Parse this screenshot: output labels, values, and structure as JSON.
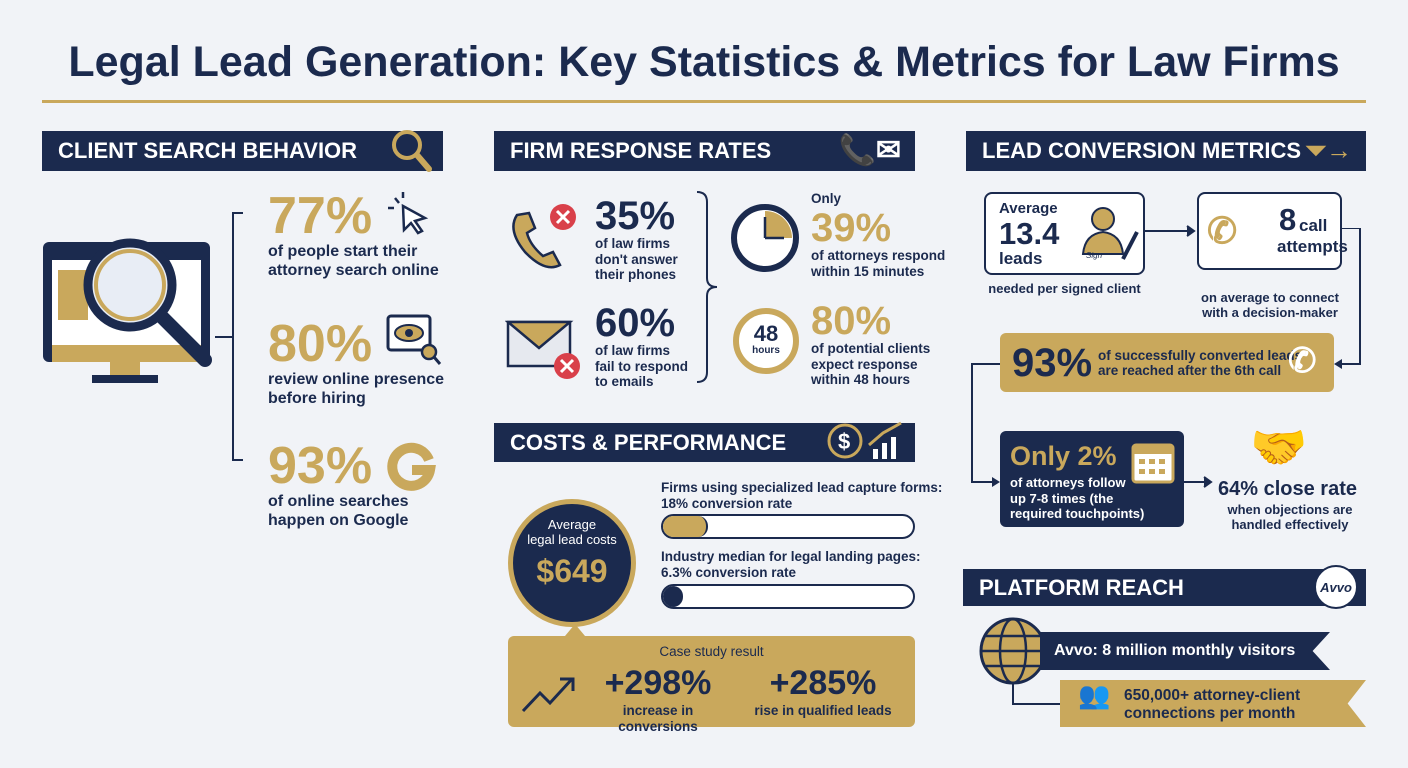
{
  "title": "Legal Lead Generation: Key Statistics & Metrics for Law Firms",
  "colors": {
    "navy": "#1b2a4e",
    "gold": "#c9a85c",
    "background": "#f1f3f7",
    "error": "#d9404a"
  },
  "client_search": {
    "header": "CLIENT SEARCH BEHAVIOR",
    "icon": "magnifier-icon",
    "stats": [
      {
        "value": "77%",
        "line1": "of people start their",
        "line2": "attorney search online",
        "icon": "cursor-click-icon"
      },
      {
        "value": "80%",
        "line1": "review online presence",
        "line2": "before hiring",
        "icon": "eye-screen-icon"
      },
      {
        "value": "93%",
        "line1": "of online searches",
        "line2": "happen on Google",
        "icon": "google-icon"
      }
    ]
  },
  "firm_response": {
    "header": "FIRM RESPONSE RATES",
    "left": [
      {
        "value": "35%",
        "lines": [
          "of law firms",
          "don't answer",
          "their phones"
        ]
      },
      {
        "value": "60%",
        "lines": [
          "of law firms",
          "fail to respond",
          "to emails"
        ]
      }
    ],
    "right": [
      {
        "prefix": "Only",
        "value": "39%",
        "lines": [
          "of attorneys respond",
          "within 15 minutes"
        ]
      },
      {
        "value": "80%",
        "lines": [
          "of potential clients",
          "expect response",
          "within 48 hours"
        ],
        "timer_number": "48",
        "timer_unit": "hours"
      }
    ]
  },
  "costs": {
    "header": "COSTS & PERFORMANCE",
    "avg_label1": "Average",
    "avg_label2": "legal lead costs",
    "avg_value": "$649",
    "bars": [
      {
        "line1": "Firms using specialized lead capture forms:",
        "line2": "18% conversion rate",
        "percent": 18
      },
      {
        "line1": "Industry median for legal landing pages:",
        "line2": "6.3% conversion rate",
        "percent": 6.3
      }
    ],
    "case_study": {
      "label": "Case study result",
      "items": [
        {
          "value": "+298%",
          "label": "increase in conversions"
        },
        {
          "value": "+285%",
          "label": "rise in qualified leads"
        }
      ]
    }
  },
  "conversion": {
    "header": "LEAD CONVERSION METRICS",
    "leads": {
      "top": "Average",
      "value": "13.4",
      "unit": "leads",
      "caption": "needed per signed client",
      "signature": "Sign"
    },
    "calls": {
      "value": "8",
      "unit1": "call",
      "unit2": "attempts",
      "caption1": "on average to connect",
      "caption2": "with a decision-maker"
    },
    "reached": {
      "value": "93%",
      "line1": "of successfully converted leads",
      "line2": "are reached after the 6th call"
    },
    "followup": {
      "value": "Only 2%",
      "lines": [
        "of attorneys follow",
        "up 7-8 times (the",
        "required touchpoints)"
      ]
    },
    "close": {
      "value": "64%",
      "label": "close rate",
      "line1": "when objections are",
      "line2": "handled effectively"
    }
  },
  "platform": {
    "header": "PLATFORM REACH",
    "logo": "Avvo",
    "visitors": "Avvo: 8 million monthly visitors",
    "connections1": "650,000+ attorney-client",
    "connections2": "connections per month"
  }
}
